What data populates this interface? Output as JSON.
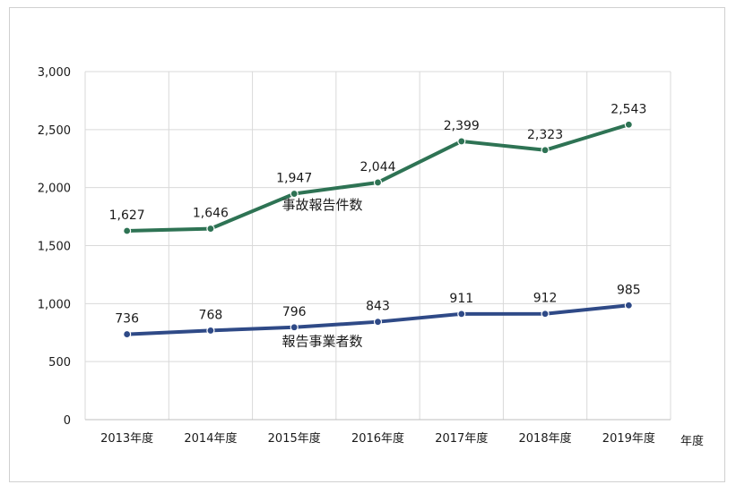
{
  "chart_data": {
    "type": "line",
    "categories": [
      "2013年度",
      "2014年度",
      "2015年度",
      "2016年度",
      "2017年度",
      "2018年度",
      "2019年度"
    ],
    "xlabel": "年度",
    "ylim": [
      0,
      3000
    ],
    "yticks": [
      0,
      500,
      1000,
      1500,
      2000,
      2500,
      3000
    ],
    "ytick_labels": [
      "0",
      "500",
      "1,000",
      "1,500",
      "2,000",
      "2,500",
      "3,000"
    ],
    "grid": true,
    "series": [
      {
        "name": "事故報告件数",
        "color": "#2e7354",
        "values": [
          1627,
          1646,
          1947,
          2044,
          2399,
          2323,
          2543
        ],
        "labels": [
          "1,627",
          "1,646",
          "1,947",
          "2,044",
          "2,399",
          "2,323",
          "2,543"
        ]
      },
      {
        "name": "報告事業者数",
        "color": "#2f4a87",
        "values": [
          736,
          768,
          796,
          843,
          911,
          912,
          985
        ],
        "labels": [
          "736",
          "768",
          "796",
          "843",
          "911",
          "912",
          "985"
        ]
      }
    ]
  }
}
